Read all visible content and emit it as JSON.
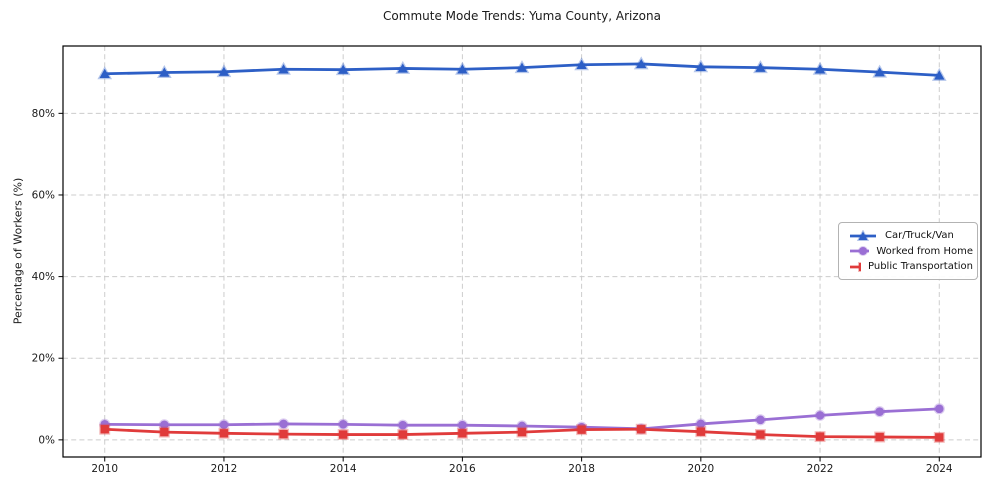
{
  "chart_data": {
    "type": "line",
    "title": "Commute Mode Trends: Yuma County, Arizona",
    "ylabel": "Percentage of Workers (%)",
    "x": [
      2010,
      2011,
      2012,
      2013,
      2014,
      2015,
      2016,
      2017,
      2018,
      2019,
      2020,
      2021,
      2022,
      2023,
      2024
    ],
    "xticks": [
      2010,
      2012,
      2014,
      2016,
      2018,
      2020,
      2022,
      2024
    ],
    "xtick_labels": [
      "2010",
      "2012",
      "2014",
      "2016",
      "2018",
      "2020",
      "2022",
      "2024"
    ],
    "yticks": [
      0,
      20,
      40,
      60,
      80
    ],
    "ytick_labels": [
      "0%",
      "20%",
      "40%",
      "60%",
      "80%"
    ],
    "xlim": [
      2009.3,
      2024.7
    ],
    "ylim": [
      -4.2,
      96.5
    ],
    "grid": true,
    "grid_style": "dashed",
    "grid_color": "#cccccc",
    "axis_color": "#000000",
    "tick_label_color": "#1a1a1a",
    "legend_position": "center-right",
    "legend_border_color": "#b3b3b3",
    "series": [
      {
        "name": "Car/Truck/Van",
        "color": "#2d5fc6",
        "marker": "triangle",
        "values": [
          89.7,
          90.0,
          90.2,
          90.8,
          90.7,
          91.0,
          90.8,
          91.2,
          91.9,
          92.1,
          91.4,
          91.2,
          90.8,
          90.1,
          89.3
        ]
      },
      {
        "name": "Worked from Home",
        "color": "#9a6fd4",
        "marker": "circle",
        "values": [
          3.8,
          3.7,
          3.7,
          3.9,
          3.8,
          3.6,
          3.6,
          3.4,
          3.1,
          2.7,
          3.9,
          4.9,
          6.0,
          6.9,
          7.6
        ]
      },
      {
        "name": "Public Transportation",
        "color": "#e03b3b",
        "marker": "square",
        "values": [
          2.6,
          1.9,
          1.6,
          1.4,
          1.3,
          1.3,
          1.6,
          1.9,
          2.5,
          2.6,
          2.0,
          1.3,
          0.8,
          0.7,
          0.6
        ]
      }
    ]
  }
}
